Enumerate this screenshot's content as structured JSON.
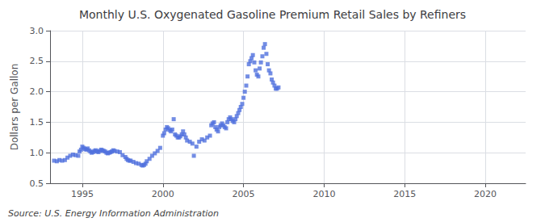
{
  "chart_data": {
    "type": "scatter",
    "title": "Monthly U.S. Oxygenated Gasoline Premium Retail Sales by Refiners",
    "ylabel": "Dollars per Gallon",
    "annotations": [
      "Source: U.S. Energy Information Administration"
    ],
    "marker": "square",
    "grid": true,
    "xlim": [
      1993.0,
      2022.5
    ],
    "xticks": [
      1995,
      2000,
      2005,
      2010,
      2015,
      2020
    ],
    "ylim": [
      0.5,
      3.0
    ],
    "yticks": [
      0.5,
      {
        "value": 1.0,
        "label": "1.0"
      },
      1.5,
      {
        "value": 2.0,
        "label": "2.0"
      },
      2.5,
      {
        "value": 3.0,
        "label": "3.0"
      }
    ],
    "x": [
      1993.25,
      1993.42,
      1993.58,
      1993.75,
      1993.92,
      1994.08,
      1994.25,
      1994.42,
      1994.58,
      1994.75,
      1994.83,
      1994.92,
      1995.0,
      1995.08,
      1995.17,
      1995.25,
      1995.33,
      1995.42,
      1995.5,
      1995.58,
      1995.67,
      1995.75,
      1995.83,
      1995.92,
      1996.0,
      1996.08,
      1996.17,
      1996.25,
      1996.33,
      1996.42,
      1996.5,
      1996.58,
      1996.67,
      1996.75,
      1996.83,
      1996.92,
      1997.0,
      1997.17,
      1997.33,
      1997.5,
      1997.67,
      1997.75,
      1997.83,
      1997.92,
      1998.0,
      1998.17,
      1998.33,
      1998.5,
      1998.67,
      1998.75,
      1998.83,
      1998.92,
      1999.0,
      1999.17,
      1999.33,
      1999.5,
      1999.67,
      1999.83,
      2000.0,
      2000.08,
      2000.17,
      2000.25,
      2000.33,
      2000.42,
      2000.5,
      2000.58,
      2000.67,
      2000.75,
      2000.83,
      2000.92,
      2001.0,
      2001.08,
      2001.17,
      2001.25,
      2001.33,
      2001.42,
      2001.5,
      2001.67,
      2001.83,
      2001.92,
      2002.08,
      2002.25,
      2002.42,
      2002.58,
      2002.75,
      2002.92,
      2003.0,
      2003.08,
      2003.17,
      2003.25,
      2003.33,
      2003.42,
      2003.5,
      2003.58,
      2003.67,
      2003.75,
      2003.83,
      2003.92,
      2004.0,
      2004.08,
      2004.17,
      2004.25,
      2004.33,
      2004.42,
      2004.5,
      2004.58,
      2004.67,
      2004.75,
      2004.83,
      2004.92,
      2005.0,
      2005.08,
      2005.17,
      2005.25,
      2005.33,
      2005.42,
      2005.5,
      2005.58,
      2005.67,
      2005.75,
      2005.83,
      2005.92,
      2006.0,
      2006.08,
      2006.17,
      2006.25,
      2006.33,
      2006.42,
      2006.5,
      2006.58,
      2006.67,
      2006.75,
      2006.83,
      2006.92,
      2007.0,
      2007.08,
      2007.17
    ],
    "values": [
      0.87,
      0.86,
      0.88,
      0.87,
      0.88,
      0.92,
      0.95,
      0.97,
      0.96,
      0.95,
      1.02,
      1.05,
      1.1,
      1.08,
      1.06,
      1.05,
      1.07,
      1.04,
      1.02,
      1.0,
      1.01,
      1.03,
      1.04,
      1.02,
      1.01,
      1.03,
      1.05,
      1.04,
      1.03,
      1.02,
      1.0,
      0.99,
      1.0,
      1.01,
      1.02,
      1.04,
      1.03,
      1.02,
      1.01,
      0.96,
      0.93,
      0.9,
      0.88,
      0.87,
      0.87,
      0.85,
      0.83,
      0.82,
      0.8,
      0.79,
      0.8,
      0.82,
      0.86,
      0.9,
      0.95,
      0.99,
      1.03,
      1.08,
      1.28,
      1.32,
      1.38,
      1.42,
      1.4,
      1.37,
      1.35,
      1.38,
      1.55,
      1.3,
      1.28,
      1.25,
      1.25,
      1.27,
      1.3,
      1.35,
      1.3,
      1.25,
      1.2,
      1.18,
      1.15,
      0.95,
      1.1,
      1.18,
      1.22,
      1.2,
      1.25,
      1.28,
      1.45,
      1.48,
      1.5,
      1.42,
      1.38,
      1.35,
      1.42,
      1.45,
      1.48,
      1.45,
      1.42,
      1.4,
      1.5,
      1.55,
      1.58,
      1.55,
      1.52,
      1.5,
      1.55,
      1.6,
      1.65,
      1.7,
      1.75,
      1.8,
      1.9,
      2.0,
      2.1,
      2.25,
      2.45,
      2.5,
      2.55,
      2.6,
      2.48,
      2.35,
      2.28,
      2.25,
      2.38,
      2.48,
      2.58,
      2.72,
      2.78,
      2.62,
      2.45,
      2.35,
      2.3,
      2.2,
      2.15,
      2.1,
      2.05,
      2.05,
      2.07
    ]
  }
}
